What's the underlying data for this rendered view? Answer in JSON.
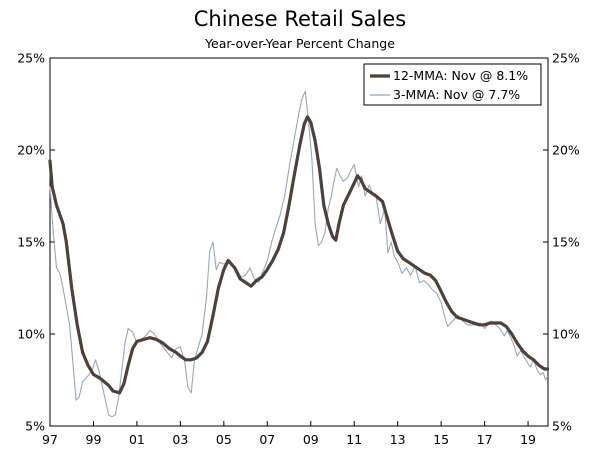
{
  "chart_data": {
    "type": "line",
    "title": "Chinese Retail Sales",
    "subtitle": "Year-over-Year Percent Change",
    "xlim": [
      1997.0,
      2019.917
    ],
    "ylim": [
      5,
      25
    ],
    "y_ticks": [
      5,
      10,
      15,
      20,
      25
    ],
    "y_tick_labels": [
      "5%",
      "10%",
      "15%",
      "20%",
      "25%"
    ],
    "x_ticks": [
      1997,
      1999,
      2001,
      2003,
      2005,
      2007,
      2009,
      2011,
      2013,
      2015,
      2017,
      2019
    ],
    "x_tick_labels": [
      "97",
      "99",
      "01",
      "03",
      "05",
      "07",
      "09",
      "11",
      "13",
      "15",
      "17",
      "19"
    ],
    "grid": false,
    "legend_position": "top-right",
    "colors": {
      "mma12": "#4d4139",
      "mma3": "#98a8b8"
    },
    "series": [
      {
        "name": "12-MMA: Nov @ 8.1%",
        "points": [
          [
            1997.0,
            19.4
          ],
          [
            1997.1,
            18.0
          ],
          [
            1997.3,
            17.0
          ],
          [
            1997.6,
            16.0
          ],
          [
            1997.75,
            15.0
          ],
          [
            1998.0,
            12.5
          ],
          [
            1998.25,
            10.5
          ],
          [
            1998.5,
            9.0
          ],
          [
            1998.75,
            8.3
          ],
          [
            1999.0,
            7.8
          ],
          [
            1999.3,
            7.6
          ],
          [
            1999.5,
            7.4
          ],
          [
            1999.7,
            7.2
          ],
          [
            1999.9,
            6.9
          ],
          [
            2000.2,
            6.8
          ],
          [
            2000.4,
            7.3
          ],
          [
            2000.6,
            8.3
          ],
          [
            2000.8,
            9.2
          ],
          [
            2001.0,
            9.6
          ],
          [
            2001.3,
            9.7
          ],
          [
            2001.6,
            9.8
          ],
          [
            2001.9,
            9.7
          ],
          [
            2002.2,
            9.5
          ],
          [
            2002.5,
            9.2
          ],
          [
            2002.8,
            9.0
          ],
          [
            2003.0,
            8.8
          ],
          [
            2003.25,
            8.6
          ],
          [
            2003.5,
            8.6
          ],
          [
            2003.75,
            8.7
          ],
          [
            2004.0,
            9.0
          ],
          [
            2004.25,
            9.6
          ],
          [
            2004.5,
            11.0
          ],
          [
            2004.75,
            12.5
          ],
          [
            2005.0,
            13.5
          ],
          [
            2005.2,
            14.0
          ],
          [
            2005.5,
            13.6
          ],
          [
            2005.75,
            13.0
          ],
          [
            2006.0,
            12.8
          ],
          [
            2006.25,
            12.6
          ],
          [
            2006.5,
            12.9
          ],
          [
            2006.75,
            13.1
          ],
          [
            2007.0,
            13.5
          ],
          [
            2007.25,
            14.0
          ],
          [
            2007.5,
            14.6
          ],
          [
            2007.75,
            15.5
          ],
          [
            2008.0,
            17.0
          ],
          [
            2008.25,
            18.7
          ],
          [
            2008.5,
            20.3
          ],
          [
            2008.7,
            21.4
          ],
          [
            2008.85,
            21.8
          ],
          [
            2009.0,
            21.5
          ],
          [
            2009.2,
            20.5
          ],
          [
            2009.4,
            19.0
          ],
          [
            2009.6,
            17.0
          ],
          [
            2009.8,
            16.0
          ],
          [
            2010.0,
            15.3
          ],
          [
            2010.15,
            15.1
          ],
          [
            2010.3,
            16.0
          ],
          [
            2010.5,
            17.0
          ],
          [
            2010.75,
            17.6
          ],
          [
            2011.0,
            18.2
          ],
          [
            2011.15,
            18.6
          ],
          [
            2011.3,
            18.4
          ],
          [
            2011.5,
            17.9
          ],
          [
            2011.75,
            17.7
          ],
          [
            2012.0,
            17.5
          ],
          [
            2012.3,
            17.2
          ],
          [
            2012.5,
            16.4
          ],
          [
            2012.75,
            15.4
          ],
          [
            2013.0,
            14.5
          ],
          [
            2013.25,
            14.1
          ],
          [
            2013.5,
            13.9
          ],
          [
            2013.75,
            13.7
          ],
          [
            2014.0,
            13.5
          ],
          [
            2014.25,
            13.3
          ],
          [
            2014.5,
            13.2
          ],
          [
            2014.75,
            12.9
          ],
          [
            2015.0,
            12.3
          ],
          [
            2015.25,
            11.7
          ],
          [
            2015.5,
            11.2
          ],
          [
            2015.75,
            10.9
          ],
          [
            2016.0,
            10.8
          ],
          [
            2016.25,
            10.7
          ],
          [
            2016.5,
            10.6
          ],
          [
            2016.75,
            10.5
          ],
          [
            2017.0,
            10.5
          ],
          [
            2017.25,
            10.6
          ],
          [
            2017.5,
            10.6
          ],
          [
            2017.75,
            10.6
          ],
          [
            2018.0,
            10.4
          ],
          [
            2018.25,
            10.0
          ],
          [
            2018.5,
            9.5
          ],
          [
            2018.75,
            9.1
          ],
          [
            2019.0,
            8.8
          ],
          [
            2019.25,
            8.6
          ],
          [
            2019.5,
            8.3
          ],
          [
            2019.75,
            8.1
          ],
          [
            2019.9,
            8.1
          ]
        ]
      },
      {
        "name": "3-MMA: Nov @ 7.7%",
        "points": [
          [
            1997.0,
            18.0
          ],
          [
            1997.15,
            15.5
          ],
          [
            1997.3,
            13.6
          ],
          [
            1997.45,
            13.3
          ],
          [
            1997.6,
            12.5
          ],
          [
            1997.75,
            11.5
          ],
          [
            1997.9,
            10.5
          ],
          [
            1998.05,
            8.5
          ],
          [
            1998.2,
            6.4
          ],
          [
            1998.35,
            6.6
          ],
          [
            1998.5,
            7.4
          ],
          [
            1998.65,
            7.6
          ],
          [
            1998.8,
            7.8
          ],
          [
            1998.95,
            8.1
          ],
          [
            1999.1,
            8.6
          ],
          [
            1999.25,
            8.0
          ],
          [
            1999.4,
            7.2
          ],
          [
            1999.55,
            6.4
          ],
          [
            1999.7,
            5.6
          ],
          [
            1999.85,
            5.5
          ],
          [
            2000.0,
            5.6
          ],
          [
            2000.15,
            6.5
          ],
          [
            2000.3,
            8.0
          ],
          [
            2000.45,
            9.5
          ],
          [
            2000.6,
            10.3
          ],
          [
            2000.8,
            10.1
          ],
          [
            2001.0,
            9.5
          ],
          [
            2001.2,
            9.7
          ],
          [
            2001.4,
            9.9
          ],
          [
            2001.6,
            10.2
          ],
          [
            2001.8,
            10.0
          ],
          [
            2002.0,
            9.6
          ],
          [
            2002.2,
            9.3
          ],
          [
            2002.4,
            9.0
          ],
          [
            2002.6,
            8.7
          ],
          [
            2002.8,
            9.2
          ],
          [
            2003.0,
            9.3
          ],
          [
            2003.2,
            8.5
          ],
          [
            2003.35,
            7.1
          ],
          [
            2003.5,
            6.8
          ],
          [
            2003.65,
            8.6
          ],
          [
            2003.8,
            9.2
          ],
          [
            2004.0,
            10.0
          ],
          [
            2004.2,
            12.0
          ],
          [
            2004.35,
            14.5
          ],
          [
            2004.5,
            15.0
          ],
          [
            2004.65,
            13.5
          ],
          [
            2004.8,
            13.9
          ],
          [
            2005.0,
            13.8
          ],
          [
            2005.2,
            13.9
          ],
          [
            2005.4,
            13.7
          ],
          [
            2005.6,
            13.5
          ],
          [
            2005.8,
            13.1
          ],
          [
            2006.0,
            13.2
          ],
          [
            2006.2,
            13.6
          ],
          [
            2006.4,
            13.0
          ],
          [
            2006.6,
            12.8
          ],
          [
            2006.8,
            13.4
          ],
          [
            2007.0,
            14.0
          ],
          [
            2007.2,
            15.0
          ],
          [
            2007.4,
            15.8
          ],
          [
            2007.6,
            16.5
          ],
          [
            2007.8,
            17.5
          ],
          [
            2008.0,
            19.0
          ],
          [
            2008.15,
            20.0
          ],
          [
            2008.3,
            21.0
          ],
          [
            2008.45,
            22.0
          ],
          [
            2008.6,
            22.8
          ],
          [
            2008.75,
            23.2
          ],
          [
            2008.9,
            21.5
          ],
          [
            2009.05,
            19.5
          ],
          [
            2009.2,
            16.0
          ],
          [
            2009.35,
            14.8
          ],
          [
            2009.5,
            15.0
          ],
          [
            2009.65,
            15.5
          ],
          [
            2009.8,
            16.8
          ],
          [
            2009.95,
            17.5
          ],
          [
            2010.05,
            18.2
          ],
          [
            2010.2,
            19.0
          ],
          [
            2010.35,
            18.6
          ],
          [
            2010.5,
            18.3
          ],
          [
            2010.7,
            18.5
          ],
          [
            2010.85,
            18.9
          ],
          [
            2011.0,
            19.2
          ],
          [
            2011.2,
            18.0
          ],
          [
            2011.35,
            18.6
          ],
          [
            2011.5,
            17.5
          ],
          [
            2011.7,
            18.1
          ],
          [
            2011.85,
            17.6
          ],
          [
            2012.0,
            17.5
          ],
          [
            2012.2,
            16.0
          ],
          [
            2012.4,
            16.8
          ],
          [
            2012.55,
            14.4
          ],
          [
            2012.7,
            15.0
          ],
          [
            2012.85,
            14.2
          ],
          [
            2013.0,
            13.9
          ],
          [
            2013.2,
            13.3
          ],
          [
            2013.4,
            13.6
          ],
          [
            2013.6,
            13.2
          ],
          [
            2013.8,
            13.7
          ],
          [
            2014.0,
            12.8
          ],
          [
            2014.2,
            12.9
          ],
          [
            2014.4,
            12.7
          ],
          [
            2014.6,
            12.4
          ],
          [
            2014.8,
            12.2
          ],
          [
            2015.0,
            11.7
          ],
          [
            2015.15,
            11.0
          ],
          [
            2015.3,
            10.4
          ],
          [
            2015.45,
            10.6
          ],
          [
            2015.6,
            10.8
          ],
          [
            2015.8,
            11.0
          ],
          [
            2016.0,
            10.7
          ],
          [
            2016.2,
            10.5
          ],
          [
            2016.4,
            10.5
          ],
          [
            2016.6,
            10.5
          ],
          [
            2016.8,
            10.6
          ],
          [
            2017.0,
            10.3
          ],
          [
            2017.15,
            10.5
          ],
          [
            2017.3,
            10.7
          ],
          [
            2017.5,
            10.5
          ],
          [
            2017.7,
            10.3
          ],
          [
            2017.9,
            9.9
          ],
          [
            2018.05,
            10.2
          ],
          [
            2018.2,
            9.8
          ],
          [
            2018.35,
            9.4
          ],
          [
            2018.5,
            8.8
          ],
          [
            2018.65,
            9.1
          ],
          [
            2018.8,
            8.8
          ],
          [
            2018.95,
            8.5
          ],
          [
            2019.1,
            8.2
          ],
          [
            2019.25,
            8.6
          ],
          [
            2019.4,
            8.1
          ],
          [
            2019.55,
            7.8
          ],
          [
            2019.7,
            7.9
          ],
          [
            2019.8,
            7.5
          ],
          [
            2019.9,
            7.7
          ]
        ]
      }
    ]
  }
}
